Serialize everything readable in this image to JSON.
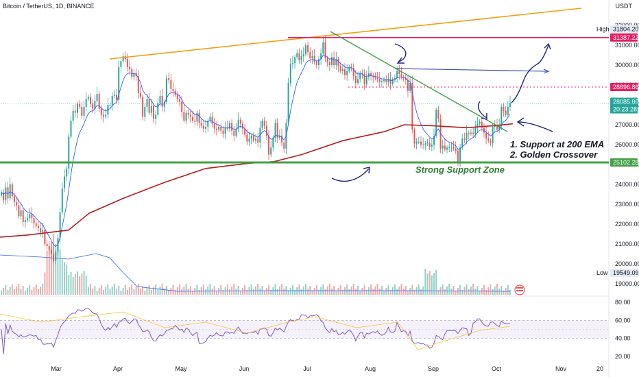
{
  "header": {
    "symbol_title": "Bitcoin / TetherUS, 1D, BINANCE",
    "currency": "USDT"
  },
  "price_axis": {
    "ticks": [
      "32000.00",
      "31000.00",
      "30000.00",
      "29000.00",
      "28000.00",
      "27000.00",
      "26000.00",
      "25000.00",
      "24000.00",
      "23000.00",
      "22000.00",
      "21000.00",
      "20000.00",
      "19000.00"
    ],
    "tags": {
      "high_label": "High",
      "high_value": "31804.20",
      "resistance": "31387.22",
      "dotted_level": "28896.86",
      "last_price": "28085.00",
      "countdown": "20:23:28",
      "support": "25102.28",
      "low_label": "Low",
      "low_value": "19549.09"
    }
  },
  "rsi_axis": {
    "ticks": [
      "80.00",
      "60.00",
      "40.00",
      "20.00"
    ]
  },
  "time_axis": {
    "labels": [
      "Mar",
      "Apr",
      "May",
      "Jun",
      "Jul",
      "Aug",
      "Sep",
      "Oct",
      "Nov",
      "20"
    ]
  },
  "annotations": {
    "support_zone": "Strong Support Zone",
    "note_line1": "1. Support at 200 EMA",
    "note_line2": "2. Golden Crossover"
  },
  "colors": {
    "up": "#26a69a",
    "down": "#ef5350",
    "ema200": "#b71c1c",
    "ema_short": "#2962ff",
    "trendline_top": "#f59e0b",
    "downtrend": "#43a047",
    "support": "#43a047",
    "resistance": "#e91e63",
    "rsi": "#7e57c2",
    "annotation_text": "#131722",
    "support_text": "#2e7d32",
    "arrows": "#1a237e"
  },
  "chart_data": {
    "type": "candlestick",
    "symbol": "Bitcoin / TetherUS",
    "interval": "1D",
    "exchange": "BINANCE",
    "ylim": [
      18600,
      32600
    ],
    "high": 31804.2,
    "low": 19549.09,
    "last": 28085.0,
    "levels": {
      "resistance": 31387.22,
      "dotted": 28896.86,
      "support": 25102.28
    },
    "candles_close": [
      23600,
      23200,
      23850,
      23300,
      24000,
      23400,
      23100,
      22950,
      22400,
      22700,
      22100,
      22200,
      22300,
      22500,
      22300,
      22050,
      21900,
      21800,
      21600,
      21700,
      21000,
      20900,
      20700,
      20500,
      20150,
      20600,
      21300,
      22600,
      23800,
      24400,
      24800,
      26400,
      27200,
      27700,
      27600,
      28050,
      27900,
      27450,
      27900,
      28300,
      28400,
      28050,
      27800,
      28200,
      28550,
      27800,
      27500,
      27400,
      27500,
      28000,
      28000,
      28450,
      28500,
      28250,
      29900,
      30200,
      30450,
      30300,
      29900,
      29800,
      29400,
      29600,
      29450,
      28600,
      28400,
      27400,
      27900,
      28300,
      27600,
      27950,
      27300,
      27500,
      28100,
      28450,
      27900,
      28150,
      29350,
      29250,
      28800,
      28700,
      28500,
      28300,
      28150,
      27650,
      27200,
      27600,
      27500,
      27400,
      27200,
      27150,
      27600,
      27100,
      26950,
      26800,
      26900,
      27200,
      27400,
      27050,
      26800,
      26750,
      26900,
      26700,
      26550,
      26850,
      26800,
      27100,
      26700,
      26450,
      26800,
      27250,
      27050,
      26800,
      26500,
      26150,
      26300,
      26450,
      26200,
      26300,
      26100,
      26850,
      27200,
      26950,
      26450,
      25500,
      25850,
      26350,
      27100,
      26350,
      26450,
      26100,
      25800,
      27100,
      29100,
      30050,
      30100,
      30400,
      30600,
      30250,
      30450,
      30550,
      31000,
      30650,
      30350,
      30450,
      30150,
      30000,
      30300,
      30600,
      31150,
      30350,
      30150,
      30000,
      30400,
      30000,
      30300,
      29950,
      29700,
      29800,
      29500,
      29700,
      29900,
      29850,
      29450,
      29100,
      29300,
      29600,
      29550,
      29050,
      29400,
      29600,
      29450,
      29400,
      29350,
      29300,
      29150,
      29200,
      29250,
      29150,
      29300,
      29050,
      29300,
      29350,
      29700,
      29550,
      29400,
      29350,
      29250,
      28700,
      29100,
      26750,
      26050,
      26150,
      26150,
      26000,
      26000,
      26050,
      26100,
      25900,
      26000,
      26450,
      27750,
      27300,
      25800,
      25950,
      25750,
      25850,
      25900,
      25900,
      25800,
      25700,
      25150,
      25850,
      26300,
      26250,
      26600,
      26550,
      26600,
      26550,
      26900,
      27050,
      27150,
      26850,
      26600,
      26300,
      26200,
      26100,
      26900,
      27000,
      26750,
      26950,
      27900,
      27700,
      27500,
      27900,
      28100
    ],
    "note": "Daily BTC/USDT candles (approximate closes read from chart), 200 EMA, short EMA, volume, RSI sub-pane"
  }
}
